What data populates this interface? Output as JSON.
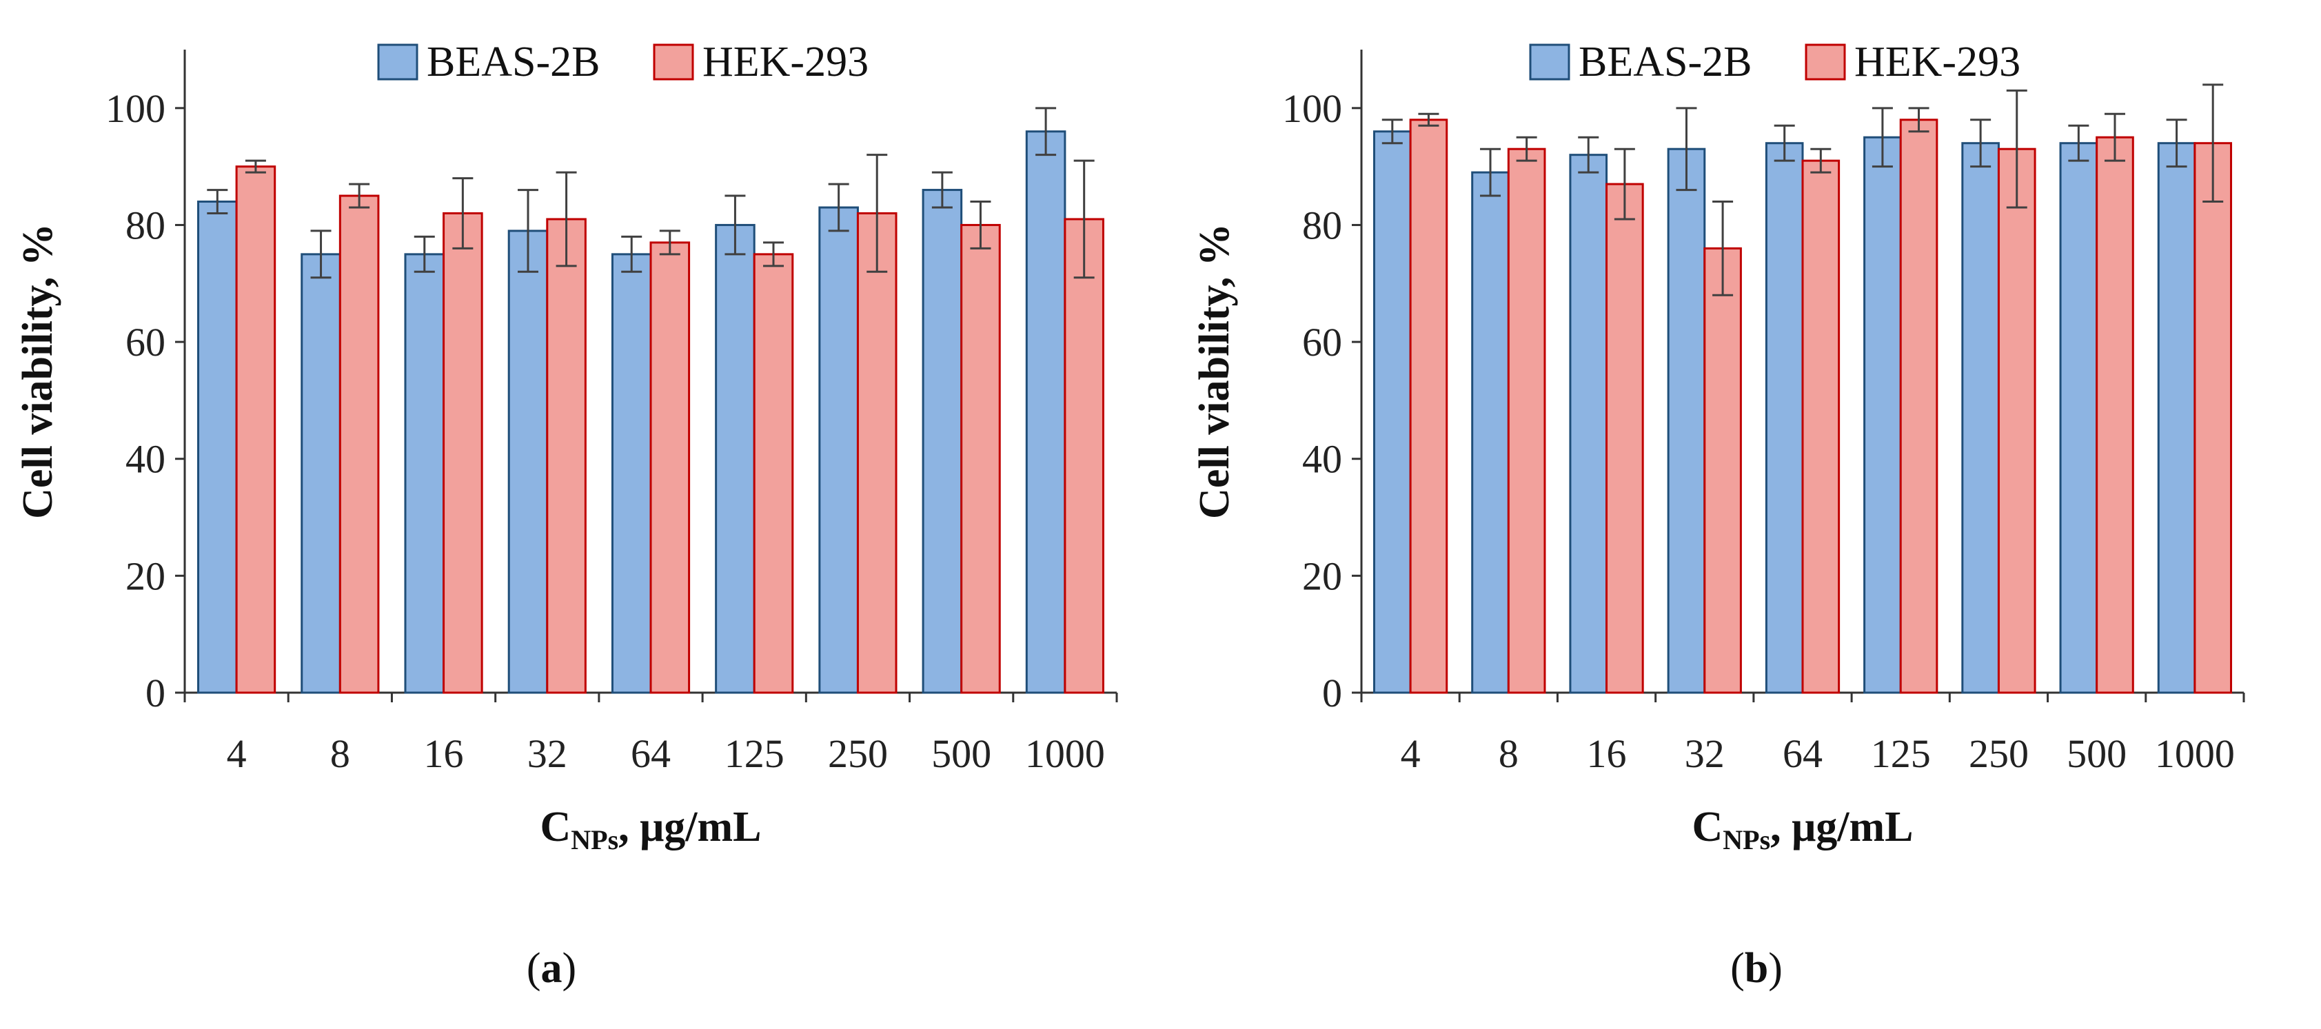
{
  "colors": {
    "series_a_fill": "#8DB4E2",
    "series_a_stroke": "#1F4E79",
    "series_b_fill": "#F2A19C",
    "series_b_stroke": "#C00000",
    "axis": "#333333",
    "error_bar": "#404040"
  },
  "chart_data": [
    {
      "type": "bar",
      "panel_label": "a",
      "categories": [
        "4",
        "8",
        "16",
        "32",
        "64",
        "125",
        "250",
        "500",
        "1000"
      ],
      "series": [
        {
          "name": "BEAS-2B",
          "values": [
            84,
            75,
            75,
            79,
            75,
            80,
            83,
            86,
            96
          ],
          "errors": [
            2,
            4,
            3,
            7,
            3,
            5,
            4,
            3,
            4
          ]
        },
        {
          "name": "HEK-293",
          "values": [
            90,
            85,
            82,
            81,
            77,
            75,
            82,
            80,
            81
          ],
          "errors": [
            1,
            2,
            6,
            8,
            2,
            2,
            10,
            4,
            10
          ]
        }
      ],
      "ylabel": "Cell viability, %",
      "xlabel_main": "C",
      "xlabel_sub": "NPs",
      "xlabel_rest": ", μg/mL",
      "ylim": [
        0,
        110
      ],
      "yticks": [
        0,
        20,
        40,
        60,
        80,
        100
      ],
      "legend": "top-center",
      "grid": false
    },
    {
      "type": "bar",
      "panel_label": "b",
      "categories": [
        "4",
        "8",
        "16",
        "32",
        "64",
        "125",
        "250",
        "500",
        "1000"
      ],
      "series": [
        {
          "name": "BEAS-2B",
          "values": [
            96,
            89,
            92,
            93,
            94,
            95,
            94,
            94,
            94
          ],
          "errors": [
            2,
            4,
            3,
            7,
            3,
            5,
            4,
            3,
            4
          ]
        },
        {
          "name": "HEK-293",
          "values": [
            98,
            93,
            87,
            76,
            91,
            98,
            93,
            95,
            94
          ],
          "errors": [
            1,
            2,
            6,
            8,
            2,
            2,
            10,
            4,
            10
          ]
        }
      ],
      "ylabel": "Cell viability, %",
      "xlabel_main": "C",
      "xlabel_sub": "NPs",
      "xlabel_rest": ", μg/mL",
      "ylim": [
        0,
        110
      ],
      "yticks": [
        0,
        20,
        40,
        60,
        80,
        100
      ],
      "legend": "top-center",
      "grid": false
    }
  ]
}
